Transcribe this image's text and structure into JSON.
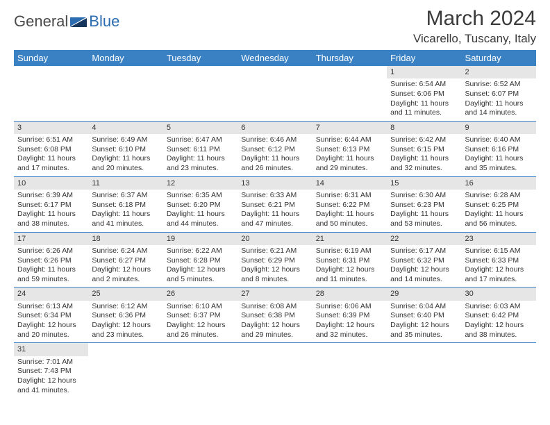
{
  "logo": {
    "text1": "General",
    "text2": "Blue"
  },
  "title": "March 2024",
  "subtitle": "Vicarello, Tuscany, Italy",
  "header_bg": "#3a81c4",
  "daybar_bg": "#e6e6e6",
  "dayNames": [
    "Sunday",
    "Monday",
    "Tuesday",
    "Wednesday",
    "Thursday",
    "Friday",
    "Saturday"
  ],
  "weeks": [
    [
      null,
      null,
      null,
      null,
      null,
      {
        "n": "1",
        "sr": "Sunrise: 6:54 AM",
        "ss": "Sunset: 6:06 PM",
        "d1": "Daylight: 11 hours",
        "d2": "and 11 minutes."
      },
      {
        "n": "2",
        "sr": "Sunrise: 6:52 AM",
        "ss": "Sunset: 6:07 PM",
        "d1": "Daylight: 11 hours",
        "d2": "and 14 minutes."
      }
    ],
    [
      {
        "n": "3",
        "sr": "Sunrise: 6:51 AM",
        "ss": "Sunset: 6:08 PM",
        "d1": "Daylight: 11 hours",
        "d2": "and 17 minutes."
      },
      {
        "n": "4",
        "sr": "Sunrise: 6:49 AM",
        "ss": "Sunset: 6:10 PM",
        "d1": "Daylight: 11 hours",
        "d2": "and 20 minutes."
      },
      {
        "n": "5",
        "sr": "Sunrise: 6:47 AM",
        "ss": "Sunset: 6:11 PM",
        "d1": "Daylight: 11 hours",
        "d2": "and 23 minutes."
      },
      {
        "n": "6",
        "sr": "Sunrise: 6:46 AM",
        "ss": "Sunset: 6:12 PM",
        "d1": "Daylight: 11 hours",
        "d2": "and 26 minutes."
      },
      {
        "n": "7",
        "sr": "Sunrise: 6:44 AM",
        "ss": "Sunset: 6:13 PM",
        "d1": "Daylight: 11 hours",
        "d2": "and 29 minutes."
      },
      {
        "n": "8",
        "sr": "Sunrise: 6:42 AM",
        "ss": "Sunset: 6:15 PM",
        "d1": "Daylight: 11 hours",
        "d2": "and 32 minutes."
      },
      {
        "n": "9",
        "sr": "Sunrise: 6:40 AM",
        "ss": "Sunset: 6:16 PM",
        "d1": "Daylight: 11 hours",
        "d2": "and 35 minutes."
      }
    ],
    [
      {
        "n": "10",
        "sr": "Sunrise: 6:39 AM",
        "ss": "Sunset: 6:17 PM",
        "d1": "Daylight: 11 hours",
        "d2": "and 38 minutes."
      },
      {
        "n": "11",
        "sr": "Sunrise: 6:37 AM",
        "ss": "Sunset: 6:18 PM",
        "d1": "Daylight: 11 hours",
        "d2": "and 41 minutes."
      },
      {
        "n": "12",
        "sr": "Sunrise: 6:35 AM",
        "ss": "Sunset: 6:20 PM",
        "d1": "Daylight: 11 hours",
        "d2": "and 44 minutes."
      },
      {
        "n": "13",
        "sr": "Sunrise: 6:33 AM",
        "ss": "Sunset: 6:21 PM",
        "d1": "Daylight: 11 hours",
        "d2": "and 47 minutes."
      },
      {
        "n": "14",
        "sr": "Sunrise: 6:31 AM",
        "ss": "Sunset: 6:22 PM",
        "d1": "Daylight: 11 hours",
        "d2": "and 50 minutes."
      },
      {
        "n": "15",
        "sr": "Sunrise: 6:30 AM",
        "ss": "Sunset: 6:23 PM",
        "d1": "Daylight: 11 hours",
        "d2": "and 53 minutes."
      },
      {
        "n": "16",
        "sr": "Sunrise: 6:28 AM",
        "ss": "Sunset: 6:25 PM",
        "d1": "Daylight: 11 hours",
        "d2": "and 56 minutes."
      }
    ],
    [
      {
        "n": "17",
        "sr": "Sunrise: 6:26 AM",
        "ss": "Sunset: 6:26 PM",
        "d1": "Daylight: 11 hours",
        "d2": "and 59 minutes."
      },
      {
        "n": "18",
        "sr": "Sunrise: 6:24 AM",
        "ss": "Sunset: 6:27 PM",
        "d1": "Daylight: 12 hours",
        "d2": "and 2 minutes."
      },
      {
        "n": "19",
        "sr": "Sunrise: 6:22 AM",
        "ss": "Sunset: 6:28 PM",
        "d1": "Daylight: 12 hours",
        "d2": "and 5 minutes."
      },
      {
        "n": "20",
        "sr": "Sunrise: 6:21 AM",
        "ss": "Sunset: 6:29 PM",
        "d1": "Daylight: 12 hours",
        "d2": "and 8 minutes."
      },
      {
        "n": "21",
        "sr": "Sunrise: 6:19 AM",
        "ss": "Sunset: 6:31 PM",
        "d1": "Daylight: 12 hours",
        "d2": "and 11 minutes."
      },
      {
        "n": "22",
        "sr": "Sunrise: 6:17 AM",
        "ss": "Sunset: 6:32 PM",
        "d1": "Daylight: 12 hours",
        "d2": "and 14 minutes."
      },
      {
        "n": "23",
        "sr": "Sunrise: 6:15 AM",
        "ss": "Sunset: 6:33 PM",
        "d1": "Daylight: 12 hours",
        "d2": "and 17 minutes."
      }
    ],
    [
      {
        "n": "24",
        "sr": "Sunrise: 6:13 AM",
        "ss": "Sunset: 6:34 PM",
        "d1": "Daylight: 12 hours",
        "d2": "and 20 minutes."
      },
      {
        "n": "25",
        "sr": "Sunrise: 6:12 AM",
        "ss": "Sunset: 6:36 PM",
        "d1": "Daylight: 12 hours",
        "d2": "and 23 minutes."
      },
      {
        "n": "26",
        "sr": "Sunrise: 6:10 AM",
        "ss": "Sunset: 6:37 PM",
        "d1": "Daylight: 12 hours",
        "d2": "and 26 minutes."
      },
      {
        "n": "27",
        "sr": "Sunrise: 6:08 AM",
        "ss": "Sunset: 6:38 PM",
        "d1": "Daylight: 12 hours",
        "d2": "and 29 minutes."
      },
      {
        "n": "28",
        "sr": "Sunrise: 6:06 AM",
        "ss": "Sunset: 6:39 PM",
        "d1": "Daylight: 12 hours",
        "d2": "and 32 minutes."
      },
      {
        "n": "29",
        "sr": "Sunrise: 6:04 AM",
        "ss": "Sunset: 6:40 PM",
        "d1": "Daylight: 12 hours",
        "d2": "and 35 minutes."
      },
      {
        "n": "30",
        "sr": "Sunrise: 6:03 AM",
        "ss": "Sunset: 6:42 PM",
        "d1": "Daylight: 12 hours",
        "d2": "and 38 minutes."
      }
    ],
    [
      {
        "n": "31",
        "sr": "Sunrise: 7:01 AM",
        "ss": "Sunset: 7:43 PM",
        "d1": "Daylight: 12 hours",
        "d2": "and 41 minutes."
      },
      null,
      null,
      null,
      null,
      null,
      null
    ]
  ]
}
